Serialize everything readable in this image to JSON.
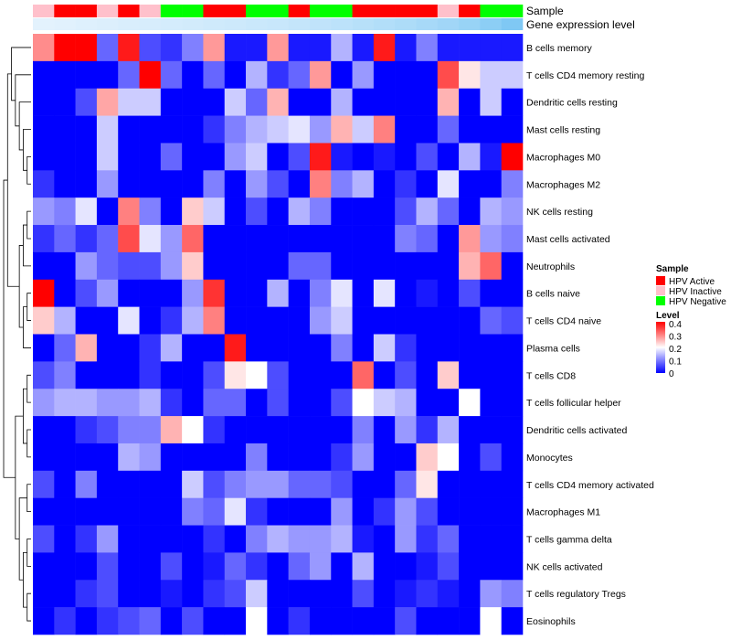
{
  "chart_data": {
    "type": "heatmap",
    "annotation_labels": {
      "sample": "Sample",
      "gene_expression": "Gene expression level"
    },
    "legend": {
      "sample_title": "Sample",
      "sample_groups": [
        {
          "name": "HPV Active",
          "color": "#ff0000"
        },
        {
          "name": "HPV Inactive",
          "color": "#ffc0cb"
        },
        {
          "name": "HPV Negative",
          "color": "#00ff00"
        }
      ],
      "level_title": "Level",
      "level_ticks": [
        "0.4",
        "0.3",
        "0.2",
        "0.1",
        "0"
      ]
    },
    "color_scale": {
      "min": 0,
      "mid": 0.2,
      "max": 0.4,
      "low": "#0000ff",
      "mid_color": "#ffffff",
      "high": "#ff0000"
    },
    "columns": 23,
    "sample_annotation": [
      "HPV Inactive",
      "HPV Active",
      "HPV Active",
      "HPV Inactive",
      "HPV Active",
      "HPV Inactive",
      "HPV Negative",
      "HPV Negative",
      "HPV Active",
      "HPV Active",
      "HPV Negative",
      "HPV Negative",
      "HPV Active",
      "HPV Negative",
      "HPV Negative",
      "HPV Active",
      "HPV Active",
      "HPV Active",
      "HPV Active",
      "HPV Inactive",
      "HPV Active",
      "HPV Negative",
      "HPV Negative"
    ],
    "gene_expression_level": [
      0.0,
      0.02,
      0.04,
      0.06,
      0.08,
      0.1,
      0.12,
      0.14,
      0.16,
      0.18,
      0.2,
      0.22,
      0.25,
      0.28,
      0.31,
      0.35,
      0.39,
      0.43,
      0.48,
      0.53,
      0.6,
      0.7,
      0.8
    ],
    "row_labels": [
      "B cells memory",
      "T cells CD4 memory resting",
      "Dendritic cells resting",
      "Mast cells resting",
      "Macrophages M0",
      "Macrophages M2",
      "NK cells resting",
      "Mast cells activated",
      "Neutrophils",
      "B cells naive",
      "T cells CD4 naive",
      "Plasma cells",
      "T cells CD8",
      "T cells follicular helper",
      "Dendritic cells activated",
      "Monocytes",
      "T cells CD4 memory activated",
      "Macrophages M1",
      "T cells gamma delta",
      "NK cells activated",
      "T cells regulatory  Tregs",
      "Eosinophils"
    ],
    "values": [
      [
        0.29,
        0.4,
        0.4,
        0.08,
        0.38,
        0.06,
        0.04,
        0.1,
        0.28,
        0.02,
        0.02,
        0.28,
        0.02,
        0.02,
        0.14,
        0.02,
        0.38,
        0.02,
        0.1,
        0.02,
        0.02,
        0.02,
        0.02
      ],
      [
        0.0,
        0.0,
        0.0,
        0.0,
        0.08,
        0.4,
        0.08,
        0.0,
        0.08,
        0.0,
        0.14,
        0.04,
        0.08,
        0.28,
        0.0,
        0.12,
        0.0,
        0.0,
        0.0,
        0.34,
        0.22,
        0.16,
        0.16
      ],
      [
        0.0,
        0.0,
        0.06,
        0.27,
        0.16,
        0.16,
        0.0,
        0.0,
        0.0,
        0.16,
        0.08,
        0.26,
        0.0,
        0.0,
        0.14,
        0.0,
        0.0,
        0.0,
        0.0,
        0.26,
        0.0,
        0.16,
        0.0
      ],
      [
        0.0,
        0.0,
        0.0,
        0.16,
        0.0,
        0.0,
        0.0,
        0.0,
        0.04,
        0.1,
        0.14,
        0.16,
        0.18,
        0.12,
        0.26,
        0.16,
        0.3,
        0.0,
        0.0,
        0.08,
        0.0,
        0.0,
        0.0
      ],
      [
        0.0,
        0.0,
        0.0,
        0.16,
        0.0,
        0.0,
        0.08,
        0.0,
        0.0,
        0.12,
        0.16,
        0.0,
        0.06,
        0.38,
        0.02,
        0.0,
        0.02,
        0.0,
        0.06,
        0.0,
        0.14,
        0.02,
        0.4
      ],
      [
        0.04,
        0.0,
        0.0,
        0.12,
        0.0,
        0.0,
        0.0,
        0.0,
        0.1,
        0.0,
        0.12,
        0.06,
        0.0,
        0.3,
        0.1,
        0.14,
        0.0,
        0.04,
        0.0,
        0.18,
        0.0,
        0.0,
        0.1
      ],
      [
        0.12,
        0.1,
        0.18,
        0.0,
        0.3,
        0.1,
        0.0,
        0.24,
        0.16,
        0.0,
        0.06,
        0.0,
        0.14,
        0.1,
        0.0,
        0.0,
        0.0,
        0.06,
        0.14,
        0.08,
        0.0,
        0.14,
        0.12
      ],
      [
        0.04,
        0.08,
        0.04,
        0.08,
        0.34,
        0.18,
        0.12,
        0.32,
        0.0,
        0.0,
        0.0,
        0.0,
        0.0,
        0.0,
        0.0,
        0.0,
        0.0,
        0.1,
        0.08,
        0.0,
        0.28,
        0.12,
        0.1
      ],
      [
        0.0,
        0.0,
        0.12,
        0.08,
        0.06,
        0.06,
        0.12,
        0.24,
        0.0,
        0.0,
        0.0,
        0.0,
        0.08,
        0.08,
        0.0,
        0.0,
        0.0,
        0.0,
        0.0,
        0.0,
        0.26,
        0.32,
        0.0
      ],
      [
        0.4,
        0.0,
        0.06,
        0.12,
        0.0,
        0.0,
        0.0,
        0.12,
        0.36,
        0.0,
        0.0,
        0.14,
        0.0,
        0.1,
        0.18,
        0.0,
        0.18,
        0.0,
        0.02,
        0.0,
        0.06,
        0.0,
        0.0
      ],
      [
        0.24,
        0.14,
        0.0,
        0.0,
        0.18,
        0.0,
        0.04,
        0.14,
        0.3,
        0.0,
        0.0,
        0.0,
        0.0,
        0.12,
        0.16,
        0.0,
        0.0,
        0.0,
        0.0,
        0.0,
        0.0,
        0.08,
        0.06
      ],
      [
        0.0,
        0.08,
        0.26,
        0.0,
        0.0,
        0.04,
        0.14,
        0.0,
        0.0,
        0.38,
        0.0,
        0.0,
        0.0,
        0.0,
        0.1,
        0.0,
        0.16,
        0.04,
        0.0,
        0.0,
        0.0,
        0.0,
        0.0
      ],
      [
        0.06,
        0.1,
        0.0,
        0.0,
        0.0,
        0.04,
        0.0,
        0.0,
        0.06,
        0.22,
        0.2,
        0.06,
        0.0,
        0.0,
        0.0,
        0.32,
        0.0,
        0.06,
        0.0,
        0.24,
        0.0,
        0.0,
        0.0
      ],
      [
        0.12,
        0.14,
        0.14,
        0.12,
        0.12,
        0.14,
        0.04,
        0.0,
        0.08,
        0.08,
        0.0,
        0.06,
        0.0,
        0.0,
        0.06,
        0.2,
        0.16,
        0.14,
        0.0,
        0.0,
        0.2,
        0.0,
        0.0
      ],
      [
        0.0,
        0.0,
        0.04,
        0.06,
        0.1,
        0.1,
        0.26,
        0.2,
        0.04,
        0.0,
        0.0,
        0.0,
        0.0,
        0.0,
        0.0,
        0.1,
        0.0,
        0.12,
        0.04,
        0.14,
        0.0,
        0.0,
        0.0
      ],
      [
        0.0,
        0.0,
        0.0,
        0.0,
        0.14,
        0.12,
        0.0,
        0.0,
        0.0,
        0.0,
        0.1,
        0.0,
        0.0,
        0.0,
        0.04,
        0.12,
        0.0,
        0.0,
        0.24,
        0.2,
        0.0,
        0.06,
        0.0
      ],
      [
        0.06,
        0.0,
        0.1,
        0.0,
        0.0,
        0.0,
        0.0,
        0.16,
        0.06,
        0.1,
        0.12,
        0.12,
        0.08,
        0.08,
        0.06,
        0.0,
        0.0,
        0.08,
        0.22,
        0.0,
        0.0,
        0.0,
        0.0
      ],
      [
        0.0,
        0.0,
        0.0,
        0.0,
        0.0,
        0.0,
        0.0,
        0.1,
        0.08,
        0.18,
        0.04,
        0.0,
        0.0,
        0.0,
        0.12,
        0.0,
        0.04,
        0.12,
        0.06,
        0.0,
        0.0,
        0.0,
        0.0
      ],
      [
        0.06,
        0.0,
        0.04,
        0.12,
        0.0,
        0.0,
        0.0,
        0.0,
        0.04,
        0.0,
        0.1,
        0.14,
        0.12,
        0.12,
        0.14,
        0.02,
        0.0,
        0.12,
        0.04,
        0.08,
        0.0,
        0.0,
        0.0
      ],
      [
        0.0,
        0.0,
        0.0,
        0.06,
        0.0,
        0.0,
        0.06,
        0.0,
        0.02,
        0.08,
        0.04,
        0.0,
        0.08,
        0.12,
        0.0,
        0.14,
        0.0,
        0.0,
        0.02,
        0.06,
        0.0,
        0.0,
        0.0
      ],
      [
        0.0,
        0.0,
        0.04,
        0.06,
        0.0,
        0.0,
        0.02,
        0.0,
        0.04,
        0.06,
        0.16,
        0.0,
        0.0,
        0.0,
        0.0,
        0.06,
        0.0,
        0.02,
        0.04,
        0.02,
        0.0,
        0.12,
        0.1
      ],
      [
        0.0,
        0.04,
        0.0,
        0.04,
        0.06,
        0.08,
        0.0,
        0.06,
        0.0,
        0.0,
        0.2,
        0.0,
        0.04,
        0.0,
        0.0,
        0.0,
        0.0,
        0.06,
        0.0,
        0.0,
        0.0,
        0.2,
        0.0
      ]
    ]
  }
}
